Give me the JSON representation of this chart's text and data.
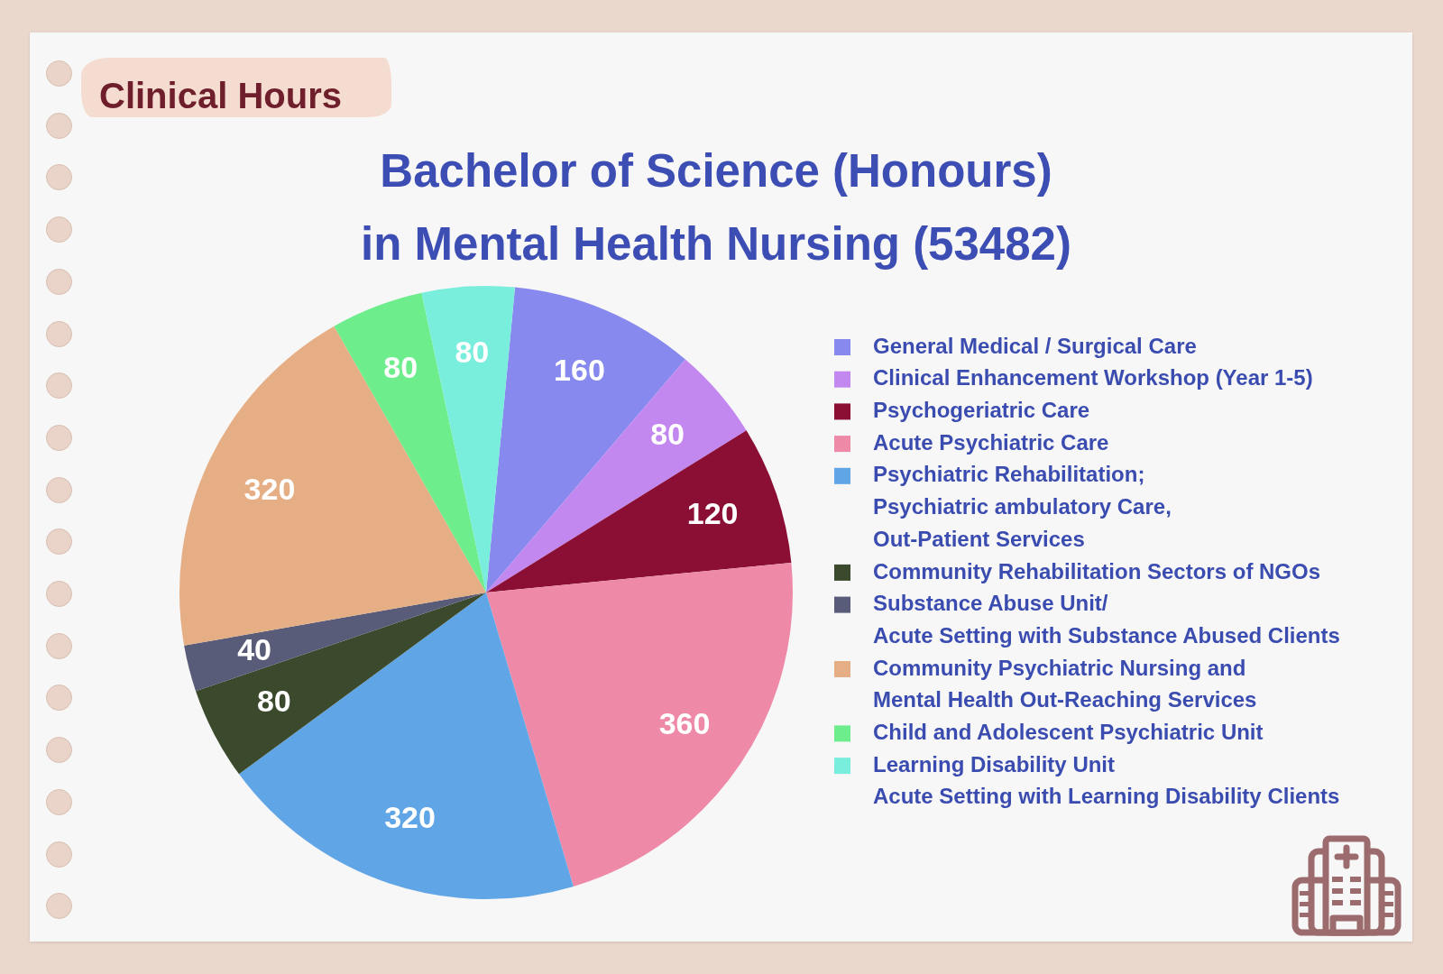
{
  "chart_data": {
    "type": "pie",
    "title": "Clinical Hours",
    "subtitle": "Bachelor of Science (Honours)\nin Mental Health Nursing (53482)",
    "categories": [
      "General Medical / Surgical Care",
      "Clinical Enhancement Workshop (Year 1-5)",
      "Psychogeriatric Care",
      "Acute Psychiatric Care",
      "Psychiatric Rehabilitation;\nPsychiatric ambulatory Care,\nOut-Patient Services",
      "Community Rehabilitation Sectors of NGOs",
      "Substance Abuse Unit/\nAcute Setting with Substance Abused Clients",
      "Community Psychiatric Nursing and\nMental Health Out-Reaching Services",
      "Child and Adolescent Psychiatric Unit",
      "Learning Disability Unit\nAcute Setting with Learning Disability Clients"
    ],
    "values": [
      160,
      80,
      120,
      360,
      320,
      80,
      40,
      320,
      80,
      80
    ],
    "colors": [
      "#8789ee",
      "#c387f0",
      "#8b0f35",
      "#ee8aa8",
      "#60a5e6",
      "#3b4a2c",
      "#585c78",
      "#e6ae84",
      "#6ded8c",
      "#79eedc"
    ],
    "data_labels": true,
    "legend": "right"
  }
}
